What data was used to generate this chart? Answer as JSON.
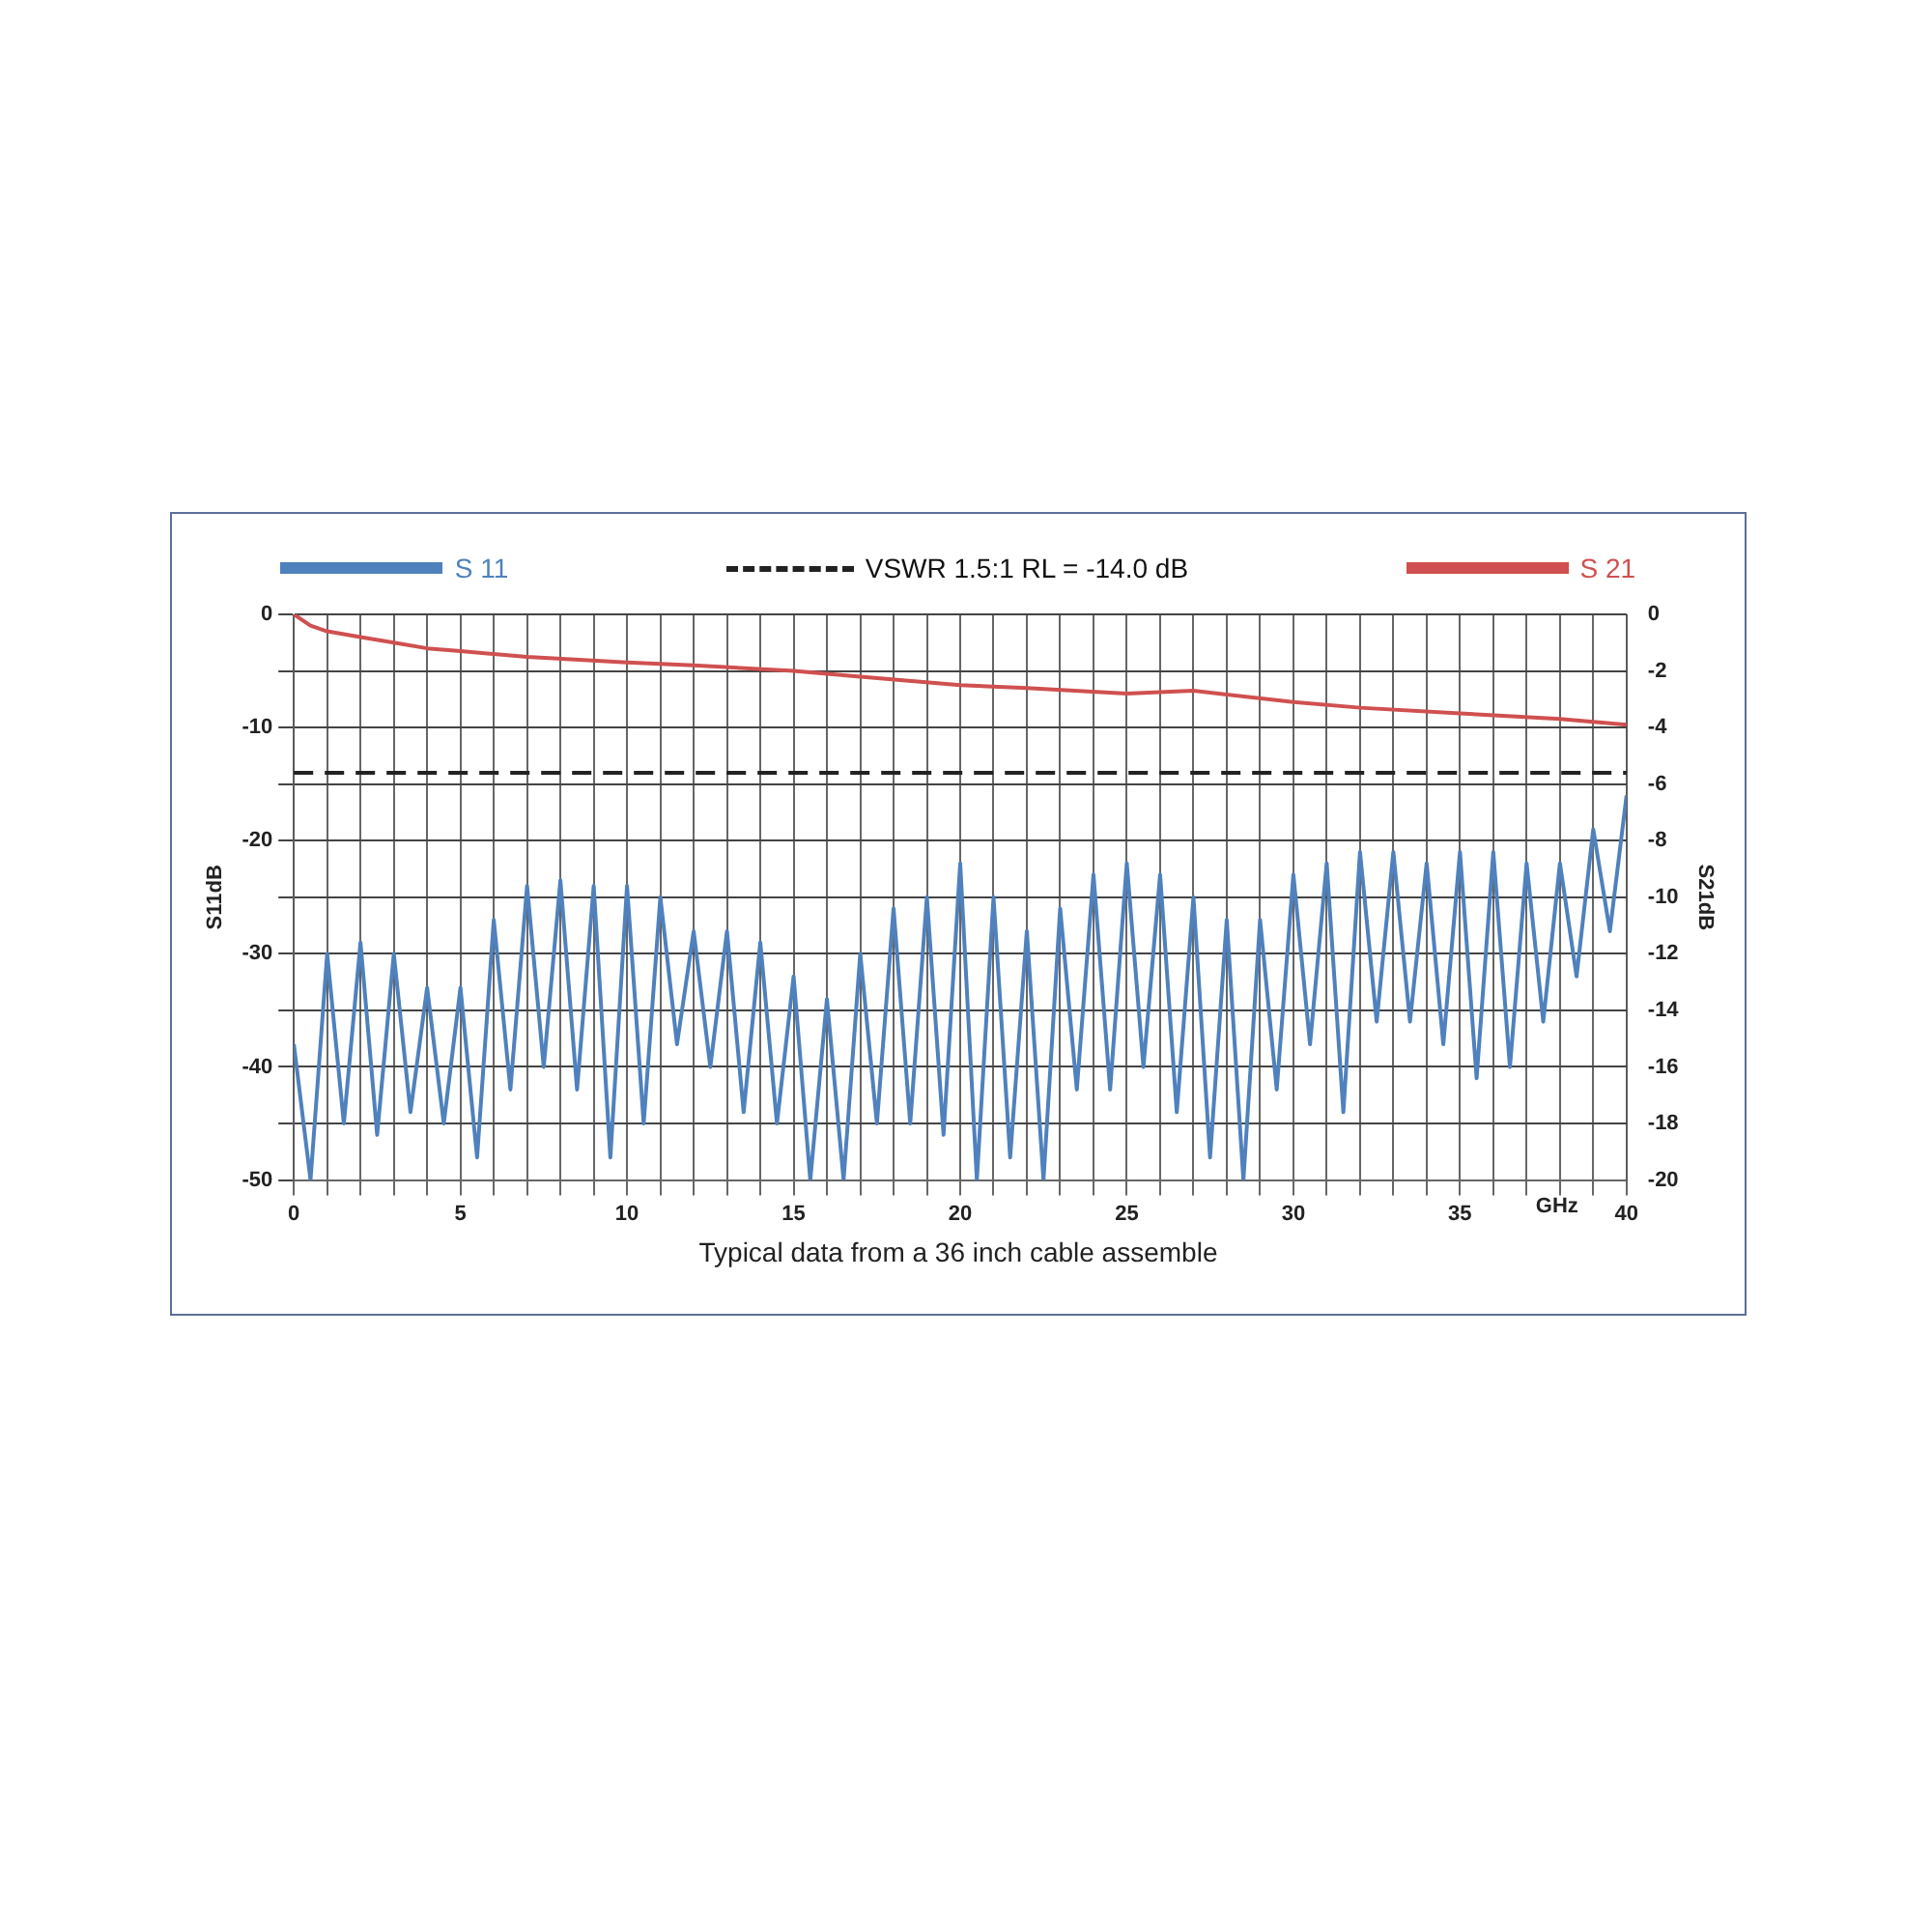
{
  "chart_data": {
    "type": "line",
    "xlabel": "GHz",
    "ylabel": "S11dB",
    "y2label": "S21dB",
    "annotations": [
      "Typical data from a 36 inch cable assemble"
    ],
    "xlim": [
      0,
      40
    ],
    "xticks": [
      0,
      {
        "value": 1,
        "label": null
      },
      {
        "value": 2,
        "label": null
      },
      {
        "value": 3,
        "label": null
      },
      {
        "value": 4,
        "label": null
      },
      5,
      {
        "value": 6,
        "label": null
      },
      {
        "value": 7,
        "label": null
      },
      {
        "value": 8,
        "label": null
      },
      {
        "value": 9,
        "label": null
      },
      10,
      {
        "value": 11,
        "label": null
      },
      {
        "value": 12,
        "label": null
      },
      {
        "value": 13,
        "label": null
      },
      {
        "value": 14,
        "label": null
      },
      15,
      {
        "value": 16,
        "label": null
      },
      {
        "value": 17,
        "label": null
      },
      {
        "value": 18,
        "label": null
      },
      {
        "value": 19,
        "label": null
      },
      20,
      {
        "value": 21,
        "label": null
      },
      {
        "value": 22,
        "label": null
      },
      {
        "value": 23,
        "label": null
      },
      {
        "value": 24,
        "label": null
      },
      25,
      {
        "value": 26,
        "label": null
      },
      {
        "value": 27,
        "label": null
      },
      {
        "value": 28,
        "label": null
      },
      {
        "value": 29,
        "label": null
      },
      30,
      {
        "value": 31,
        "label": null
      },
      {
        "value": 32,
        "label": null
      },
      {
        "value": 33,
        "label": null
      },
      {
        "value": 34,
        "label": null
      },
      35,
      {
        "value": 36,
        "label": null
      },
      {
        "value": 37,
        "label": null
      },
      {
        "value": 38,
        "label": null
      },
      {
        "value": 39,
        "label": null
      },
      40
    ],
    "ylim": [
      -50,
      0
    ],
    "yticks": [
      0,
      {
        "value": -5,
        "label": null
      },
      -10,
      {
        "value": -15,
        "label": null
      },
      -20,
      {
        "value": -25,
        "label": null
      },
      -30,
      {
        "value": -35,
        "label": null
      },
      -40,
      {
        "value": -45,
        "label": null
      },
      -50
    ],
    "y2lim": [
      -20,
      0
    ],
    "y2ticks": [
      0,
      -2,
      -4,
      -6,
      -8,
      -10,
      -12,
      -14,
      -16,
      -18,
      -20
    ],
    "grid": true,
    "legend": "top",
    "marker": "none",
    "line_style": "solid",
    "ref_lines": [
      {
        "axis": "y",
        "value": -14,
        "label": "VSWR 1.5:1 RL = -14.0 dB",
        "color": "#222222",
        "line_style": "dashed"
      }
    ],
    "series": [
      {
        "name": "S 11",
        "color": "#4f81bd",
        "x": [
          0,
          0.5,
          1,
          1.5,
          2,
          2.5,
          3,
          3.5,
          4,
          4.5,
          5,
          5.5,
          6,
          6.5,
          7,
          7.5,
          8,
          8.5,
          9,
          9.5,
          10,
          10.5,
          11,
          11.5,
          12,
          12.5,
          13,
          13.5,
          14,
          14.5,
          15,
          15.5,
          16,
          16.5,
          17,
          17.5,
          18,
          18.5,
          19,
          19.5,
          20,
          20.5,
          21,
          21.5,
          22,
          22.5,
          23,
          23.5,
          24,
          24.5,
          25,
          25.5,
          26,
          26.5,
          27,
          27.5,
          28,
          28.5,
          29,
          29.5,
          30,
          30.5,
          31,
          31.5,
          32,
          32.5,
          33,
          33.5,
          34,
          34.5,
          35,
          35.5,
          36,
          36.5,
          37,
          37.5,
          38,
          38.5,
          39,
          39.5,
          40
        ],
        "values": [
          -38,
          -50,
          -30,
          -45,
          -29,
          -46,
          -30,
          -44,
          -33,
          -45,
          -33,
          -48,
          -27,
          -42,
          -24,
          -40,
          -23.5,
          -42,
          -24,
          -48,
          -24,
          -45,
          -25,
          -38,
          -28,
          -40,
          -28,
          -44,
          -29,
          -45,
          -32,
          -50,
          -34,
          -50,
          -30,
          -45,
          -26,
          -45,
          -25,
          -46,
          -22,
          -50,
          -25,
          -48,
          -28,
          -50,
          -26,
          -42,
          -23,
          -42,
          -22,
          -40,
          -23,
          -44,
          -25,
          -48,
          -27,
          -50,
          -27,
          -42,
          -23,
          -38,
          -22,
          -44,
          -21,
          -36,
          -21,
          -36,
          -22,
          -38,
          -21,
          -41,
          -21,
          -40,
          -22,
          -36,
          -22,
          -32,
          -19,
          -28,
          -16
        ]
      },
      {
        "name": "S 21",
        "color": "#d05050",
        "axis": "y2",
        "x": [
          0,
          0.5,
          1,
          2,
          3,
          4,
          5,
          7,
          10,
          12,
          15,
          17,
          20,
          22,
          25,
          27,
          30,
          32,
          35,
          38,
          40
        ],
        "values": [
          0,
          -0.4,
          -0.6,
          -0.8,
          -1.0,
          -1.2,
          -1.3,
          -1.5,
          -1.7,
          -1.8,
          -2.0,
          -2.2,
          -2.5,
          -2.6,
          -2.8,
          -2.7,
          -3.1,
          -3.3,
          -3.5,
          -3.7,
          -3.9
        ]
      }
    ]
  }
}
